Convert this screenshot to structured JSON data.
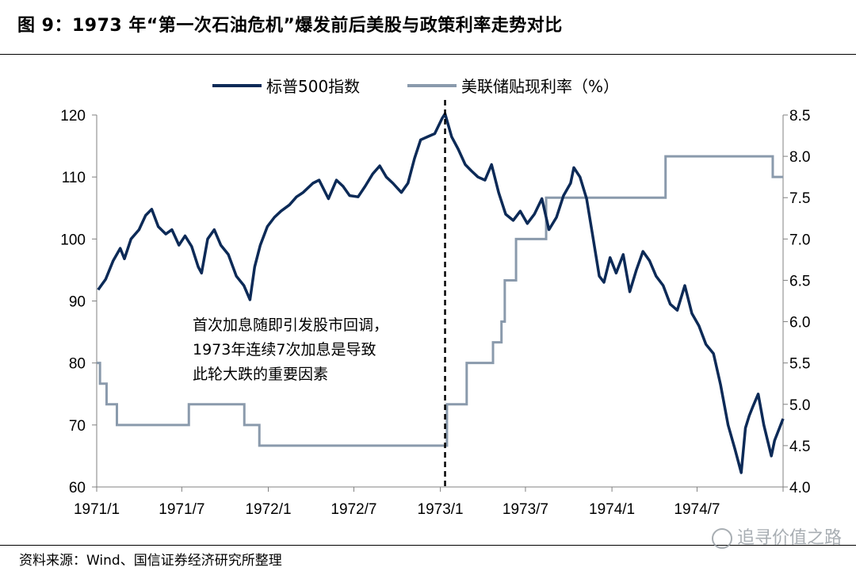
{
  "figure": {
    "title": "图 9：1973 年“第一次石油危机”爆发前后美股与政策利率走势对比",
    "source": "资料来源：Wind、国信证券经济研究所整理",
    "watermark": "追寻价值之路"
  },
  "chart_data": {
    "type": "line",
    "title": "",
    "x_ticks": [
      "1971/1",
      "1971/7",
      "1972/1",
      "1972/7",
      "1973/1",
      "1973/7",
      "1974/1",
      "1974/7"
    ],
    "x_range": [
      "1971-01-01",
      "1974-12-31"
    ],
    "y_left": {
      "range": [
        60,
        120
      ],
      "ticks": [
        60,
        70,
        80,
        90,
        100,
        110,
        120
      ]
    },
    "y_right": {
      "range": [
        4.0,
        8.5
      ],
      "ticks": [
        "4.0",
        "4.5",
        "5.0",
        "5.5",
        "6.0",
        "6.5",
        "7.0",
        "7.5",
        "8.0",
        "8.5"
      ]
    },
    "legend": {
      "placement": "top-center"
    },
    "grid": false,
    "series": [
      {
        "name": "标普500指数",
        "axis": "left",
        "color": "#0c2a57",
        "points": [
          [
            "1971-01-04",
            91.8
          ],
          [
            "1971-01-20",
            93.5
          ],
          [
            "1971-02-05",
            96.5
          ],
          [
            "1971-02-20",
            98.5
          ],
          [
            "1971-03-01",
            96.8
          ],
          [
            "1971-03-15",
            100.0
          ],
          [
            "1971-04-01",
            101.5
          ],
          [
            "1971-04-15",
            103.8
          ],
          [
            "1971-04-28",
            104.8
          ],
          [
            "1971-05-12",
            102.0
          ],
          [
            "1971-05-28",
            100.8
          ],
          [
            "1971-06-10",
            101.5
          ],
          [
            "1971-06-25",
            99.0
          ],
          [
            "1971-07-08",
            100.5
          ],
          [
            "1971-07-22",
            98.8
          ],
          [
            "1971-08-05",
            95.5
          ],
          [
            "1971-08-12",
            94.5
          ],
          [
            "1971-08-25",
            100.0
          ],
          [
            "1971-09-08",
            101.5
          ],
          [
            "1971-09-22",
            99.0
          ],
          [
            "1971-10-08",
            97.5
          ],
          [
            "1971-10-25",
            94.0
          ],
          [
            "1971-11-10",
            92.5
          ],
          [
            "1971-11-23",
            90.2
          ],
          [
            "1971-12-03",
            95.5
          ],
          [
            "1971-12-15",
            99.0
          ],
          [
            "1971-12-30",
            102.0
          ],
          [
            "1972-01-14",
            103.5
          ],
          [
            "1972-01-28",
            104.5
          ],
          [
            "1972-02-15",
            105.5
          ],
          [
            "1972-03-01",
            106.8
          ],
          [
            "1972-03-15",
            107.5
          ],
          [
            "1972-04-05",
            109.0
          ],
          [
            "1972-04-18",
            109.5
          ],
          [
            "1972-05-08",
            106.5
          ],
          [
            "1972-05-25",
            109.5
          ],
          [
            "1972-06-08",
            108.5
          ],
          [
            "1972-06-22",
            107.0
          ],
          [
            "1972-07-10",
            106.8
          ],
          [
            "1972-07-25",
            108.5
          ],
          [
            "1972-08-10",
            110.5
          ],
          [
            "1972-08-25",
            111.8
          ],
          [
            "1972-09-08",
            110.0
          ],
          [
            "1972-09-22",
            109.0
          ],
          [
            "1972-10-10",
            107.5
          ],
          [
            "1972-10-24",
            109.0
          ],
          [
            "1972-11-07",
            113.0
          ],
          [
            "1972-11-20",
            116.0
          ],
          [
            "1972-12-05",
            116.5
          ],
          [
            "1972-12-20",
            117.0
          ],
          [
            "1973-01-05",
            119.5
          ],
          [
            "1973-01-11",
            120.2
          ],
          [
            "1973-01-25",
            116.5
          ],
          [
            "1973-02-08",
            114.5
          ],
          [
            "1973-02-23",
            112.0
          ],
          [
            "1973-03-08",
            111.0
          ],
          [
            "1973-03-22",
            110.0
          ],
          [
            "1973-04-06",
            109.5
          ],
          [
            "1973-04-20",
            112.0
          ],
          [
            "1973-05-05",
            107.5
          ],
          [
            "1973-05-20",
            104.0
          ],
          [
            "1973-06-05",
            103.0
          ],
          [
            "1973-06-20",
            104.5
          ],
          [
            "1973-07-05",
            102.5
          ],
          [
            "1973-07-20",
            104.0
          ],
          [
            "1973-08-05",
            106.5
          ],
          [
            "1973-08-20",
            101.5
          ],
          [
            "1973-09-05",
            103.5
          ],
          [
            "1973-09-20",
            107.0
          ],
          [
            "1973-10-05",
            109.0
          ],
          [
            "1973-10-12",
            111.5
          ],
          [
            "1973-10-25",
            110.0
          ],
          [
            "1973-11-08",
            106.5
          ],
          [
            "1973-11-20",
            101.0
          ],
          [
            "1973-12-05",
            94.0
          ],
          [
            "1973-12-15",
            93.0
          ],
          [
            "1973-12-28",
            97.0
          ],
          [
            "1974-01-10",
            94.5
          ],
          [
            "1974-01-25",
            97.5
          ],
          [
            "1974-02-08",
            91.5
          ],
          [
            "1974-02-22",
            95.0
          ],
          [
            "1974-03-08",
            98.0
          ],
          [
            "1974-03-22",
            96.5
          ],
          [
            "1974-04-05",
            94.0
          ],
          [
            "1974-04-20",
            92.5
          ],
          [
            "1974-05-05",
            89.5
          ],
          [
            "1974-05-20",
            88.5
          ],
          [
            "1974-06-05",
            92.5
          ],
          [
            "1974-06-20",
            88.0
          ],
          [
            "1974-07-05",
            86.0
          ],
          [
            "1974-07-20",
            83.0
          ],
          [
            "1974-08-05",
            81.5
          ],
          [
            "1974-08-20",
            76.5
          ],
          [
            "1974-09-05",
            70.0
          ],
          [
            "1974-09-20",
            66.0
          ],
          [
            "1974-10-03",
            62.3
          ],
          [
            "1974-10-12",
            69.5
          ],
          [
            "1974-10-20",
            71.5
          ],
          [
            "1974-10-28",
            73.0
          ],
          [
            "1974-11-08",
            75.0
          ],
          [
            "1974-11-20",
            70.0
          ],
          [
            "1974-12-06",
            65.0
          ],
          [
            "1974-12-13",
            67.5
          ],
          [
            "1974-12-31",
            71.0
          ]
        ]
      },
      {
        "name": "美联储贴现利率（%）",
        "axis": "right",
        "color": "#8a9aac",
        "steps": [
          [
            "1971-01-01",
            5.5
          ],
          [
            "1971-01-08",
            5.25
          ],
          [
            "1971-01-22",
            5.0
          ],
          [
            "1971-02-13",
            4.75
          ],
          [
            "1971-07-16",
            5.0
          ],
          [
            "1971-11-11",
            4.75
          ],
          [
            "1971-12-13",
            4.5
          ],
          [
            "1973-01-15",
            5.0
          ],
          [
            "1973-02-26",
            5.5
          ],
          [
            "1973-04-23",
            5.75
          ],
          [
            "1973-05-11",
            6.0
          ],
          [
            "1973-05-18",
            6.5
          ],
          [
            "1973-06-11",
            7.0
          ],
          [
            "1973-08-14",
            7.5
          ],
          [
            "1974-04-25",
            8.0
          ],
          [
            "1974-12-09",
            7.75
          ]
        ],
        "end": "1974-12-31"
      }
    ],
    "marker_line": {
      "date": "1973-01-11",
      "style": "dashed"
    },
    "annotation": [
      "首次加息随即引发股市回调，",
      "1973年连续7次加息是导致",
      "此轮大跌的重要因素"
    ]
  }
}
